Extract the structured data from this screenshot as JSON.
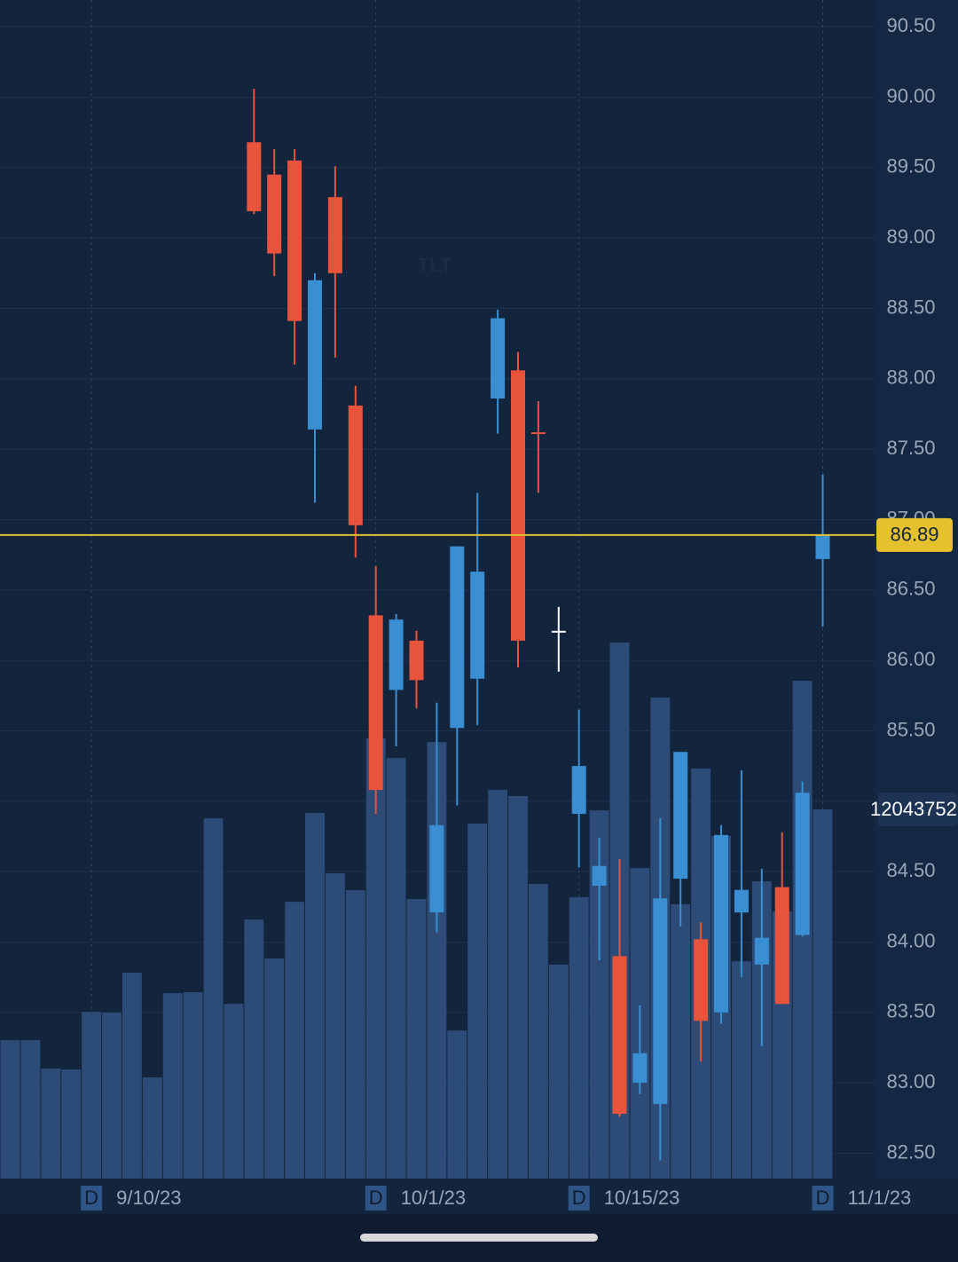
{
  "chart_data": {
    "type": "candlestick",
    "watermark": "TLT",
    "period": "D",
    "categories": [
      null,
      null,
      null,
      null,
      "9/10/23",
      null,
      null,
      null,
      null,
      null,
      null,
      null,
      null,
      null,
      null,
      null,
      null,
      null,
      "10/1/23",
      null,
      null,
      null,
      null,
      null,
      null,
      null,
      null,
      null,
      "10/15/23",
      null,
      null,
      null,
      null,
      null,
      null,
      null,
      null,
      null,
      null,
      null,
      "11/1/23"
    ],
    "open": [
      null,
      null,
      null,
      null,
      null,
      null,
      null,
      null,
      null,
      null,
      null,
      null,
      89.68,
      89.45,
      89.55,
      87.64,
      89.29,
      87.81,
      86.32,
      85.79,
      86.14,
      84.21,
      85.52,
      85.87,
      87.86,
      88.06,
      87.62,
      86.21,
      84.91,
      84.4,
      83.9,
      83.0,
      82.85,
      84.45,
      84.02,
      83.5,
      84.21,
      83.84,
      84.39,
      84.05,
      86.72
    ],
    "high": [
      null,
      null,
      null,
      null,
      null,
      null,
      null,
      null,
      null,
      null,
      null,
      null,
      90.06,
      89.63,
      89.63,
      88.75,
      89.51,
      87.95,
      86.67,
      86.33,
      86.21,
      85.7,
      86.81,
      87.19,
      88.49,
      88.19,
      87.84,
      86.38,
      85.65,
      84.74,
      84.59,
      83.55,
      84.88,
      85.35,
      84.14,
      84.83,
      85.22,
      84.52,
      84.78,
      85.14,
      87.32
    ],
    "low": [
      null,
      null,
      null,
      null,
      null,
      null,
      null,
      null,
      null,
      null,
      null,
      null,
      89.17,
      88.73,
      88.1,
      87.12,
      88.15,
      86.73,
      84.91,
      85.39,
      85.66,
      84.07,
      84.97,
      85.54,
      87.61,
      85.95,
      87.19,
      85.92,
      84.53,
      83.87,
      82.76,
      82.92,
      82.45,
      84.11,
      83.15,
      83.42,
      83.75,
      83.26,
      83.56,
      84.04,
      86.24
    ],
    "close": [
      null,
      null,
      null,
      null,
      null,
      null,
      null,
      null,
      null,
      null,
      null,
      null,
      89.19,
      88.89,
      88.41,
      88.7,
      88.75,
      86.96,
      85.08,
      86.29,
      85.86,
      84.83,
      86.81,
      86.63,
      88.43,
      86.14,
      87.61,
      86.21,
      85.25,
      84.54,
      82.78,
      83.21,
      84.31,
      85.35,
      83.44,
      84.76,
      84.37,
      84.03,
      83.56,
      85.06,
      86.89
    ],
    "up_color": "#3a8fd2",
    "down_color": "#e8533c",
    "flat_color": "#ffffff",
    "volume": {
      "color": "#2c4b77",
      "values": [
        4520000,
        4520000,
        3590000,
        3560000,
        5440000,
        5410000,
        6720000,
        3300000,
        6050000,
        6080000,
        11750000,
        5700000,
        8450000,
        7180000,
        9030000,
        11930000,
        9960000,
        9410000,
        14360000,
        13720000,
        9120000,
        14240000,
        4830000,
        11580000,
        12680000,
        12480000,
        9610000,
        6980000,
        9180000,
        12010000,
        17490000,
        10130000,
        15690000,
        8950000,
        13380000,
        11180000,
        7090000,
        9700000,
        8710000,
        16240000,
        12043752
      ]
    },
    "volume_lim": [
      0,
      38450000
    ],
    "last_price": 86.89,
    "last_price_color": "#e5c12e",
    "ylim": [
      82.32,
      90.69
    ],
    "yticks": [
      {
        "value": 82.5,
        "label": "82.50"
      },
      {
        "value": 83,
        "label": "83.00"
      },
      {
        "value": 83.5,
        "label": "83.50"
      },
      {
        "value": 84,
        "label": "84.00"
      },
      {
        "value": 84.5,
        "label": "84.50"
      },
      {
        "value": 85,
        "label": "85.00"
      },
      {
        "value": 85.5,
        "label": "85.50"
      },
      {
        "value": 86,
        "label": "86.00"
      },
      {
        "value": 86.5,
        "label": "86.50"
      },
      {
        "value": 87,
        "label": "87.00"
      },
      {
        "value": 87.5,
        "label": "87.50"
      },
      {
        "value": 88,
        "label": "88.00"
      },
      {
        "value": 88.5,
        "label": "88.50"
      },
      {
        "value": 89,
        "label": "89.00"
      },
      {
        "value": 89.5,
        "label": "89.50"
      },
      {
        "value": 90,
        "label": "90.00"
      },
      {
        "value": 90.5,
        "label": "90.50"
      }
    ],
    "grid": true
  }
}
